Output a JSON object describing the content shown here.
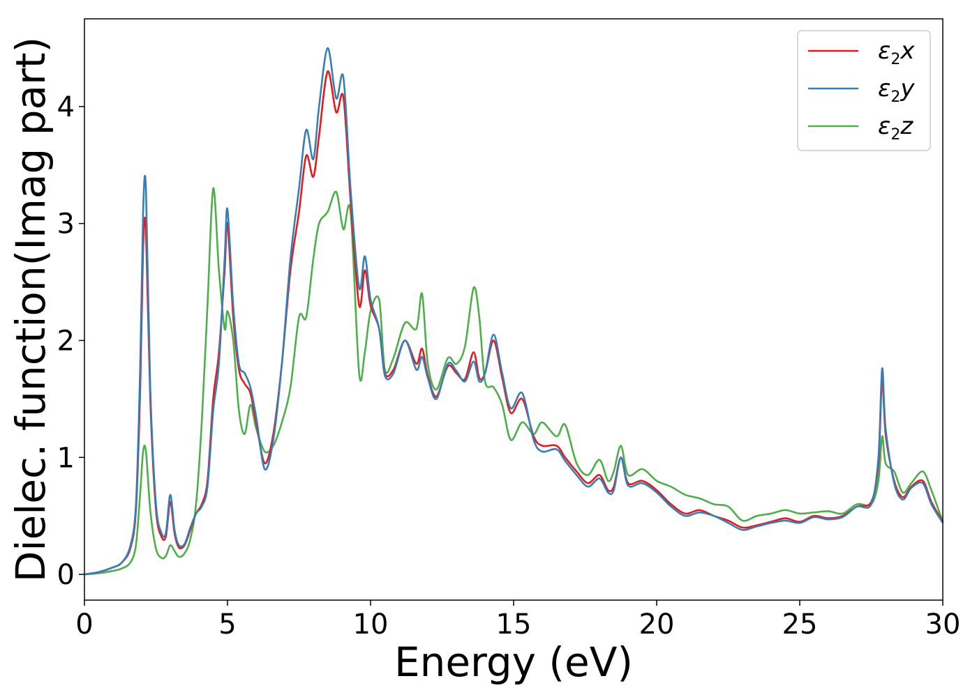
{
  "chart_data": {
    "type": "line",
    "xlabel": "Energy (eV)",
    "ylabel": "Dielec. function(Imag part)",
    "xlim": [
      0,
      30
    ],
    "ylim": [
      -0.22,
      4.75
    ],
    "xticks": [
      0,
      5,
      10,
      15,
      20,
      25,
      30
    ],
    "xtick_labels": [
      "0",
      "5",
      "10",
      "15",
      "20",
      "25",
      "30"
    ],
    "yticks": [
      0,
      1,
      2,
      3,
      4
    ],
    "ytick_labels": [
      "0",
      "1",
      "2",
      "3",
      "4"
    ],
    "grid": false,
    "legend_position": "top-right",
    "series": [
      {
        "name": "ε2x",
        "legend": {
          "base": "ε",
          "sub": "2",
          "var": "x"
        },
        "color": "#e41a1c",
        "x": [
          0,
          0.5,
          1.0,
          1.3,
          1.6,
          1.8,
          1.95,
          2.05,
          2.15,
          2.3,
          2.5,
          2.7,
          2.85,
          3.0,
          3.15,
          3.3,
          3.5,
          3.7,
          3.9,
          4.1,
          4.3,
          4.5,
          4.7,
          4.9,
          5.0,
          5.2,
          5.4,
          5.6,
          5.8,
          6.0,
          6.3,
          6.6,
          6.9,
          7.2,
          7.5,
          7.75,
          8.0,
          8.2,
          8.5,
          8.8,
          9.05,
          9.3,
          9.6,
          9.8,
          10.0,
          10.3,
          10.5,
          10.8,
          11.2,
          11.6,
          11.8,
          12.0,
          12.3,
          12.7,
          13.0,
          13.3,
          13.6,
          13.8,
          14.0,
          14.3,
          14.6,
          14.9,
          15.3,
          15.7,
          16.0,
          16.5,
          16.8,
          17.2,
          17.6,
          18.0,
          18.3,
          18.5,
          18.75,
          19.0,
          19.5,
          20.0,
          20.5,
          21.0,
          21.5,
          22.0,
          22.5,
          23.0,
          23.5,
          24.0,
          24.5,
          25.0,
          25.5,
          26.0,
          26.5,
          27.0,
          27.5,
          27.75,
          27.88,
          28.0,
          28.3,
          28.6,
          28.9,
          29.3,
          29.6,
          30.0
        ],
        "y": [
          0,
          0.02,
          0.06,
          0.1,
          0.22,
          0.55,
          1.6,
          2.8,
          2.95,
          1.5,
          0.55,
          0.32,
          0.33,
          0.62,
          0.35,
          0.23,
          0.25,
          0.38,
          0.52,
          0.6,
          0.8,
          1.5,
          1.9,
          2.6,
          3.0,
          2.2,
          1.75,
          1.63,
          1.55,
          1.3,
          0.95,
          1.2,
          1.8,
          2.6,
          3.1,
          3.58,
          3.4,
          3.75,
          4.3,
          3.95,
          4.08,
          3.2,
          2.3,
          2.6,
          2.3,
          2.1,
          1.72,
          1.75,
          2.0,
          1.8,
          1.93,
          1.7,
          1.52,
          1.78,
          1.72,
          1.67,
          1.9,
          1.68,
          1.72,
          2.0,
          1.68,
          1.38,
          1.5,
          1.18,
          1.1,
          1.1,
          1.0,
          0.88,
          0.78,
          0.85,
          0.72,
          0.75,
          1.0,
          0.78,
          0.8,
          0.72,
          0.6,
          0.52,
          0.55,
          0.5,
          0.46,
          0.4,
          0.42,
          0.45,
          0.48,
          0.45,
          0.5,
          0.48,
          0.5,
          0.58,
          0.62,
          0.95,
          1.68,
          1.2,
          0.8,
          0.66,
          0.75,
          0.8,
          0.62,
          0.45
        ]
      },
      {
        "name": "ε2y",
        "legend": {
          "base": "ε",
          "sub": "2",
          "var": "y"
        },
        "color": "#377eb8",
        "x": [
          0,
          0.5,
          1.0,
          1.3,
          1.6,
          1.8,
          1.95,
          2.05,
          2.15,
          2.3,
          2.5,
          2.7,
          2.85,
          3.0,
          3.15,
          3.3,
          3.5,
          3.7,
          3.9,
          4.1,
          4.3,
          4.5,
          4.7,
          4.9,
          5.0,
          5.2,
          5.4,
          5.6,
          5.8,
          6.0,
          6.3,
          6.6,
          6.9,
          7.2,
          7.5,
          7.75,
          8.0,
          8.2,
          8.5,
          8.8,
          9.05,
          9.3,
          9.6,
          9.8,
          10.0,
          10.3,
          10.5,
          10.8,
          11.2,
          11.6,
          11.8,
          12.0,
          12.3,
          12.7,
          13.0,
          13.3,
          13.6,
          13.8,
          14.0,
          14.3,
          14.6,
          14.9,
          15.3,
          15.7,
          16.0,
          16.5,
          16.8,
          17.2,
          17.6,
          18.0,
          18.3,
          18.5,
          18.75,
          19.0,
          19.5,
          20.0,
          20.5,
          21.0,
          21.5,
          22.0,
          22.5,
          23.0,
          23.5,
          24.0,
          24.5,
          25.0,
          25.5,
          26.0,
          26.5,
          27.0,
          27.5,
          27.75,
          27.88,
          28.0,
          28.3,
          28.6,
          28.9,
          29.3,
          29.6,
          30.0
        ],
        "y": [
          0,
          0.02,
          0.06,
          0.1,
          0.24,
          0.6,
          1.8,
          3.1,
          3.3,
          1.6,
          0.6,
          0.35,
          0.36,
          0.68,
          0.38,
          0.25,
          0.26,
          0.4,
          0.52,
          0.58,
          0.75,
          1.4,
          1.8,
          2.7,
          3.12,
          2.3,
          1.8,
          1.72,
          1.6,
          1.35,
          0.9,
          1.15,
          1.8,
          2.7,
          3.3,
          3.8,
          3.55,
          4.0,
          4.5,
          4.07,
          4.25,
          3.3,
          2.45,
          2.72,
          2.35,
          2.1,
          1.7,
          1.72,
          2.0,
          1.75,
          1.86,
          1.68,
          1.5,
          1.8,
          1.74,
          1.65,
          1.82,
          1.65,
          1.72,
          2.05,
          1.72,
          1.42,
          1.55,
          1.15,
          1.05,
          1.07,
          0.97,
          0.85,
          0.75,
          0.82,
          0.7,
          0.72,
          1.0,
          0.76,
          0.78,
          0.7,
          0.58,
          0.5,
          0.53,
          0.5,
          0.44,
          0.38,
          0.41,
          0.44,
          0.46,
          0.44,
          0.49,
          0.47,
          0.49,
          0.58,
          0.6,
          1.0,
          1.76,
          1.25,
          0.78,
          0.64,
          0.74,
          0.78,
          0.6,
          0.44
        ]
      },
      {
        "name": "ε2z",
        "legend": {
          "base": "ε",
          "sub": "2",
          "var": "z"
        },
        "color": "#4daf4a",
        "x": [
          0,
          0.5,
          1.0,
          1.3,
          1.6,
          1.8,
          1.95,
          2.05,
          2.15,
          2.3,
          2.5,
          2.7,
          2.85,
          3.0,
          3.15,
          3.3,
          3.5,
          3.7,
          3.9,
          4.1,
          4.3,
          4.5,
          4.7,
          4.9,
          5.0,
          5.2,
          5.4,
          5.6,
          5.8,
          6.0,
          6.3,
          6.6,
          6.9,
          7.2,
          7.5,
          7.75,
          8.0,
          8.2,
          8.5,
          8.8,
          9.05,
          9.3,
          9.6,
          9.8,
          10.0,
          10.3,
          10.5,
          10.8,
          11.2,
          11.6,
          11.8,
          12.0,
          12.3,
          12.7,
          13.0,
          13.3,
          13.6,
          13.8,
          14.0,
          14.3,
          14.6,
          14.9,
          15.3,
          15.7,
          16.0,
          16.5,
          16.8,
          17.2,
          17.6,
          18.0,
          18.3,
          18.5,
          18.75,
          19.0,
          19.5,
          20.0,
          20.5,
          21.0,
          21.5,
          22.0,
          22.5,
          23.0,
          23.5,
          24.0,
          24.5,
          25.0,
          25.5,
          26.0,
          26.5,
          27.0,
          27.5,
          27.75,
          27.88,
          28.0,
          28.3,
          28.6,
          28.9,
          29.3,
          29.6,
          30.0
        ],
        "y": [
          0,
          0.01,
          0.03,
          0.05,
          0.1,
          0.25,
          0.7,
          1.05,
          1.05,
          0.55,
          0.22,
          0.14,
          0.16,
          0.25,
          0.2,
          0.15,
          0.18,
          0.3,
          0.6,
          1.3,
          2.3,
          3.3,
          2.6,
          2.1,
          2.25,
          2.0,
          1.4,
          1.2,
          1.45,
          1.25,
          1.05,
          1.1,
          1.3,
          1.6,
          2.2,
          2.2,
          2.7,
          3.0,
          3.1,
          3.27,
          2.95,
          3.1,
          1.72,
          1.9,
          2.25,
          2.35,
          1.75,
          1.85,
          2.15,
          2.1,
          2.4,
          1.8,
          1.58,
          1.85,
          1.8,
          1.95,
          2.45,
          2.2,
          1.65,
          1.6,
          1.45,
          1.15,
          1.3,
          1.2,
          1.3,
          1.18,
          1.28,
          0.95,
          0.85,
          0.98,
          0.8,
          0.88,
          1.1,
          0.85,
          0.9,
          0.8,
          0.75,
          0.68,
          0.65,
          0.6,
          0.58,
          0.46,
          0.5,
          0.52,
          0.55,
          0.52,
          0.53,
          0.54,
          0.52,
          0.6,
          0.6,
          0.8,
          1.18,
          0.95,
          0.88,
          0.7,
          0.78,
          0.88,
          0.72,
          0.45
        ]
      }
    ]
  }
}
